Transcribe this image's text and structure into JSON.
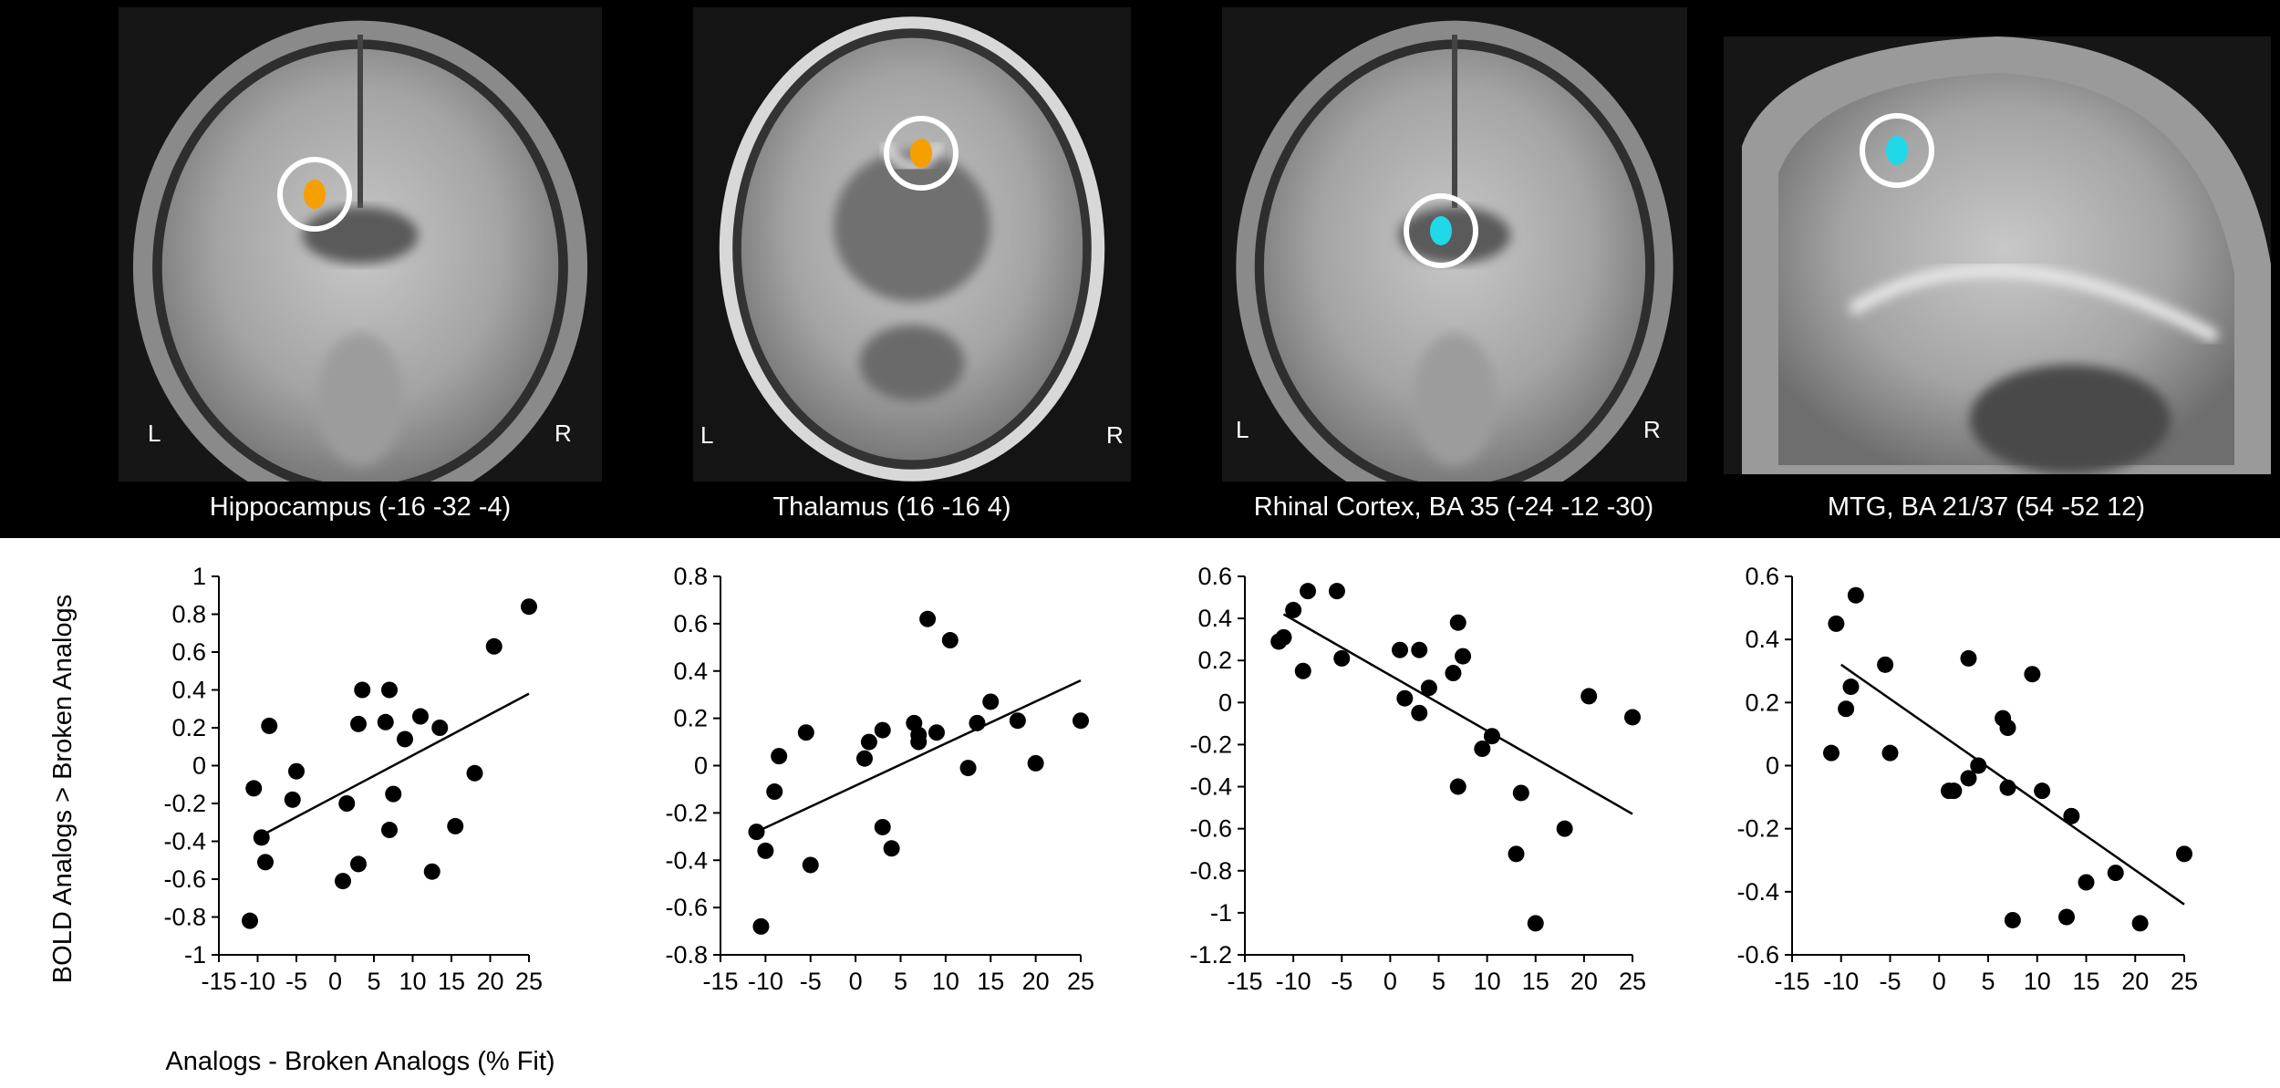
{
  "figure": {
    "slices": [
      {
        "caption": "Hippocampus (-16 -32 -4)",
        "view": "coronal",
        "left_label": "L",
        "right_label": "R",
        "blob_color": "#f5a000"
      },
      {
        "caption": "Thalamus (16 -16 4)",
        "view": "axial",
        "left_label": "L",
        "right_label": "R",
        "blob_color": "#f5a000"
      },
      {
        "caption": "Rhinal Cortex, BA 35 (-24 -12 -30)",
        "view": "coronal",
        "left_label": "L",
        "right_label": "R",
        "blob_color": "#20d8e8"
      },
      {
        "caption": "MTG, BA 21/37 (54 -52 12)",
        "view": "sagittal",
        "left_label": "",
        "right_label": "",
        "blob_color": "#20d8e8"
      }
    ],
    "y_axis_label": "BOLD Analogs > Broken Analogs",
    "x_axis_label": "Analogs - Broken Analogs (% Fit)"
  },
  "chart_data": [
    {
      "type": "scatter",
      "ylim": [
        -1,
        1
      ],
      "yticks": [
        -1,
        -0.8,
        -0.6,
        -0.4,
        -0.2,
        0,
        0.2,
        0.4,
        0.6,
        0.8,
        1
      ],
      "xlim": [
        -15,
        25
      ],
      "xticks": [
        -15,
        -10,
        -5,
        0,
        5,
        10,
        15,
        20,
        25
      ],
      "x": [
        -11,
        -10.5,
        -9.5,
        -9,
        -8.5,
        -5.5,
        -5,
        1,
        1.5,
        3,
        3,
        3.5,
        6.5,
        7,
        7,
        7.5,
        9,
        11,
        12.5,
        13.5,
        15.5,
        18,
        20.5,
        25
      ],
      "y": [
        -0.82,
        -0.12,
        -0.38,
        -0.51,
        0.21,
        -0.18,
        -0.03,
        -0.61,
        -0.2,
        0.22,
        -0.52,
        0.4,
        0.23,
        -0.34,
        0.4,
        -0.15,
        0.14,
        0.26,
        -0.56,
        0.2,
        -0.32,
        -0.04,
        0.63,
        0.84
      ],
      "fit": {
        "x": [
          -10,
          25
        ],
        "y": [
          -0.38,
          0.38
        ]
      }
    },
    {
      "type": "scatter",
      "ylim": [
        -0.8,
        0.8
      ],
      "yticks": [
        -0.8,
        -0.6,
        -0.4,
        -0.2,
        0,
        0.2,
        0.4,
        0.6,
        0.8
      ],
      "xlim": [
        -15,
        25
      ],
      "xticks": [
        -15,
        -10,
        -5,
        0,
        5,
        10,
        15,
        20,
        25
      ],
      "x": [
        -11,
        -10.5,
        -10,
        -9,
        -8.5,
        -5.5,
        -5,
        1,
        1.5,
        3,
        3,
        4,
        6.5,
        7,
        7,
        8,
        9,
        10.5,
        12.5,
        13.5,
        15,
        18,
        20,
        25
      ],
      "y": [
        -0.28,
        -0.68,
        -0.36,
        -0.11,
        0.04,
        0.14,
        -0.42,
        0.03,
        0.1,
        0.15,
        -0.26,
        -0.35,
        0.18,
        0.1,
        0.13,
        0.62,
        0.14,
        0.53,
        -0.01,
        0.18,
        0.27,
        0.19,
        0.01,
        0.19
      ],
      "fit": {
        "x": [
          -11,
          25
        ],
        "y": [
          -0.28,
          0.36
        ]
      }
    },
    {
      "type": "scatter",
      "ylim": [
        -1.2,
        0.6
      ],
      "yticks": [
        -1.2,
        -1,
        -0.8,
        -0.6,
        -0.4,
        -0.2,
        0,
        0.2,
        0.4,
        0.6
      ],
      "xlim": [
        -15,
        25
      ],
      "xticks": [
        -15,
        -10,
        -5,
        0,
        5,
        10,
        15,
        20,
        25
      ],
      "x": [
        -11.5,
        -11,
        -10,
        -9,
        -8.5,
        -5.5,
        -5,
        1,
        1.5,
        3,
        3,
        4,
        6.5,
        7,
        7,
        7.5,
        9.5,
        10.5,
        13,
        13.5,
        15,
        18,
        20.5,
        25
      ],
      "y": [
        0.29,
        0.31,
        0.44,
        0.15,
        0.53,
        0.53,
        0.21,
        0.25,
        0.02,
        0.25,
        -0.05,
        0.07,
        0.14,
        0.38,
        -0.4,
        0.22,
        -0.22,
        -0.16,
        -0.72,
        -0.43,
        -1.05,
        -0.6,
        0.03,
        -0.07
      ],
      "fit": {
        "x": [
          -11,
          25
        ],
        "y": [
          0.42,
          -0.53
        ]
      }
    },
    {
      "type": "scatter",
      "ylim": [
        -0.6,
        0.6
      ],
      "yticks": [
        -0.6,
        -0.4,
        -0.2,
        0,
        0.2,
        0.4,
        0.6
      ],
      "xlim": [
        -15,
        25
      ],
      "xticks": [
        -15,
        -10,
        -5,
        0,
        5,
        10,
        15,
        20,
        25
      ],
      "x": [
        -11,
        -10.5,
        -9.5,
        -9,
        -8.5,
        -5.5,
        -5,
        1,
        1.5,
        3,
        3,
        4,
        6.5,
        7,
        7,
        7.5,
        9.5,
        10.5,
        13,
        13.5,
        15,
        18,
        20.5,
        25
      ],
      "y": [
        0.04,
        0.45,
        0.18,
        0.25,
        0.54,
        0.32,
        0.04,
        -0.08,
        -0.08,
        0.34,
        -0.04,
        0.0,
        0.15,
        -0.07,
        0.12,
        -0.49,
        0.29,
        -0.08,
        -0.48,
        -0.16,
        -0.37,
        -0.34,
        -0.5,
        -0.28
      ],
      "fit": {
        "x": [
          -10,
          25
        ],
        "y": [
          0.32,
          -0.44
        ]
      }
    }
  ]
}
